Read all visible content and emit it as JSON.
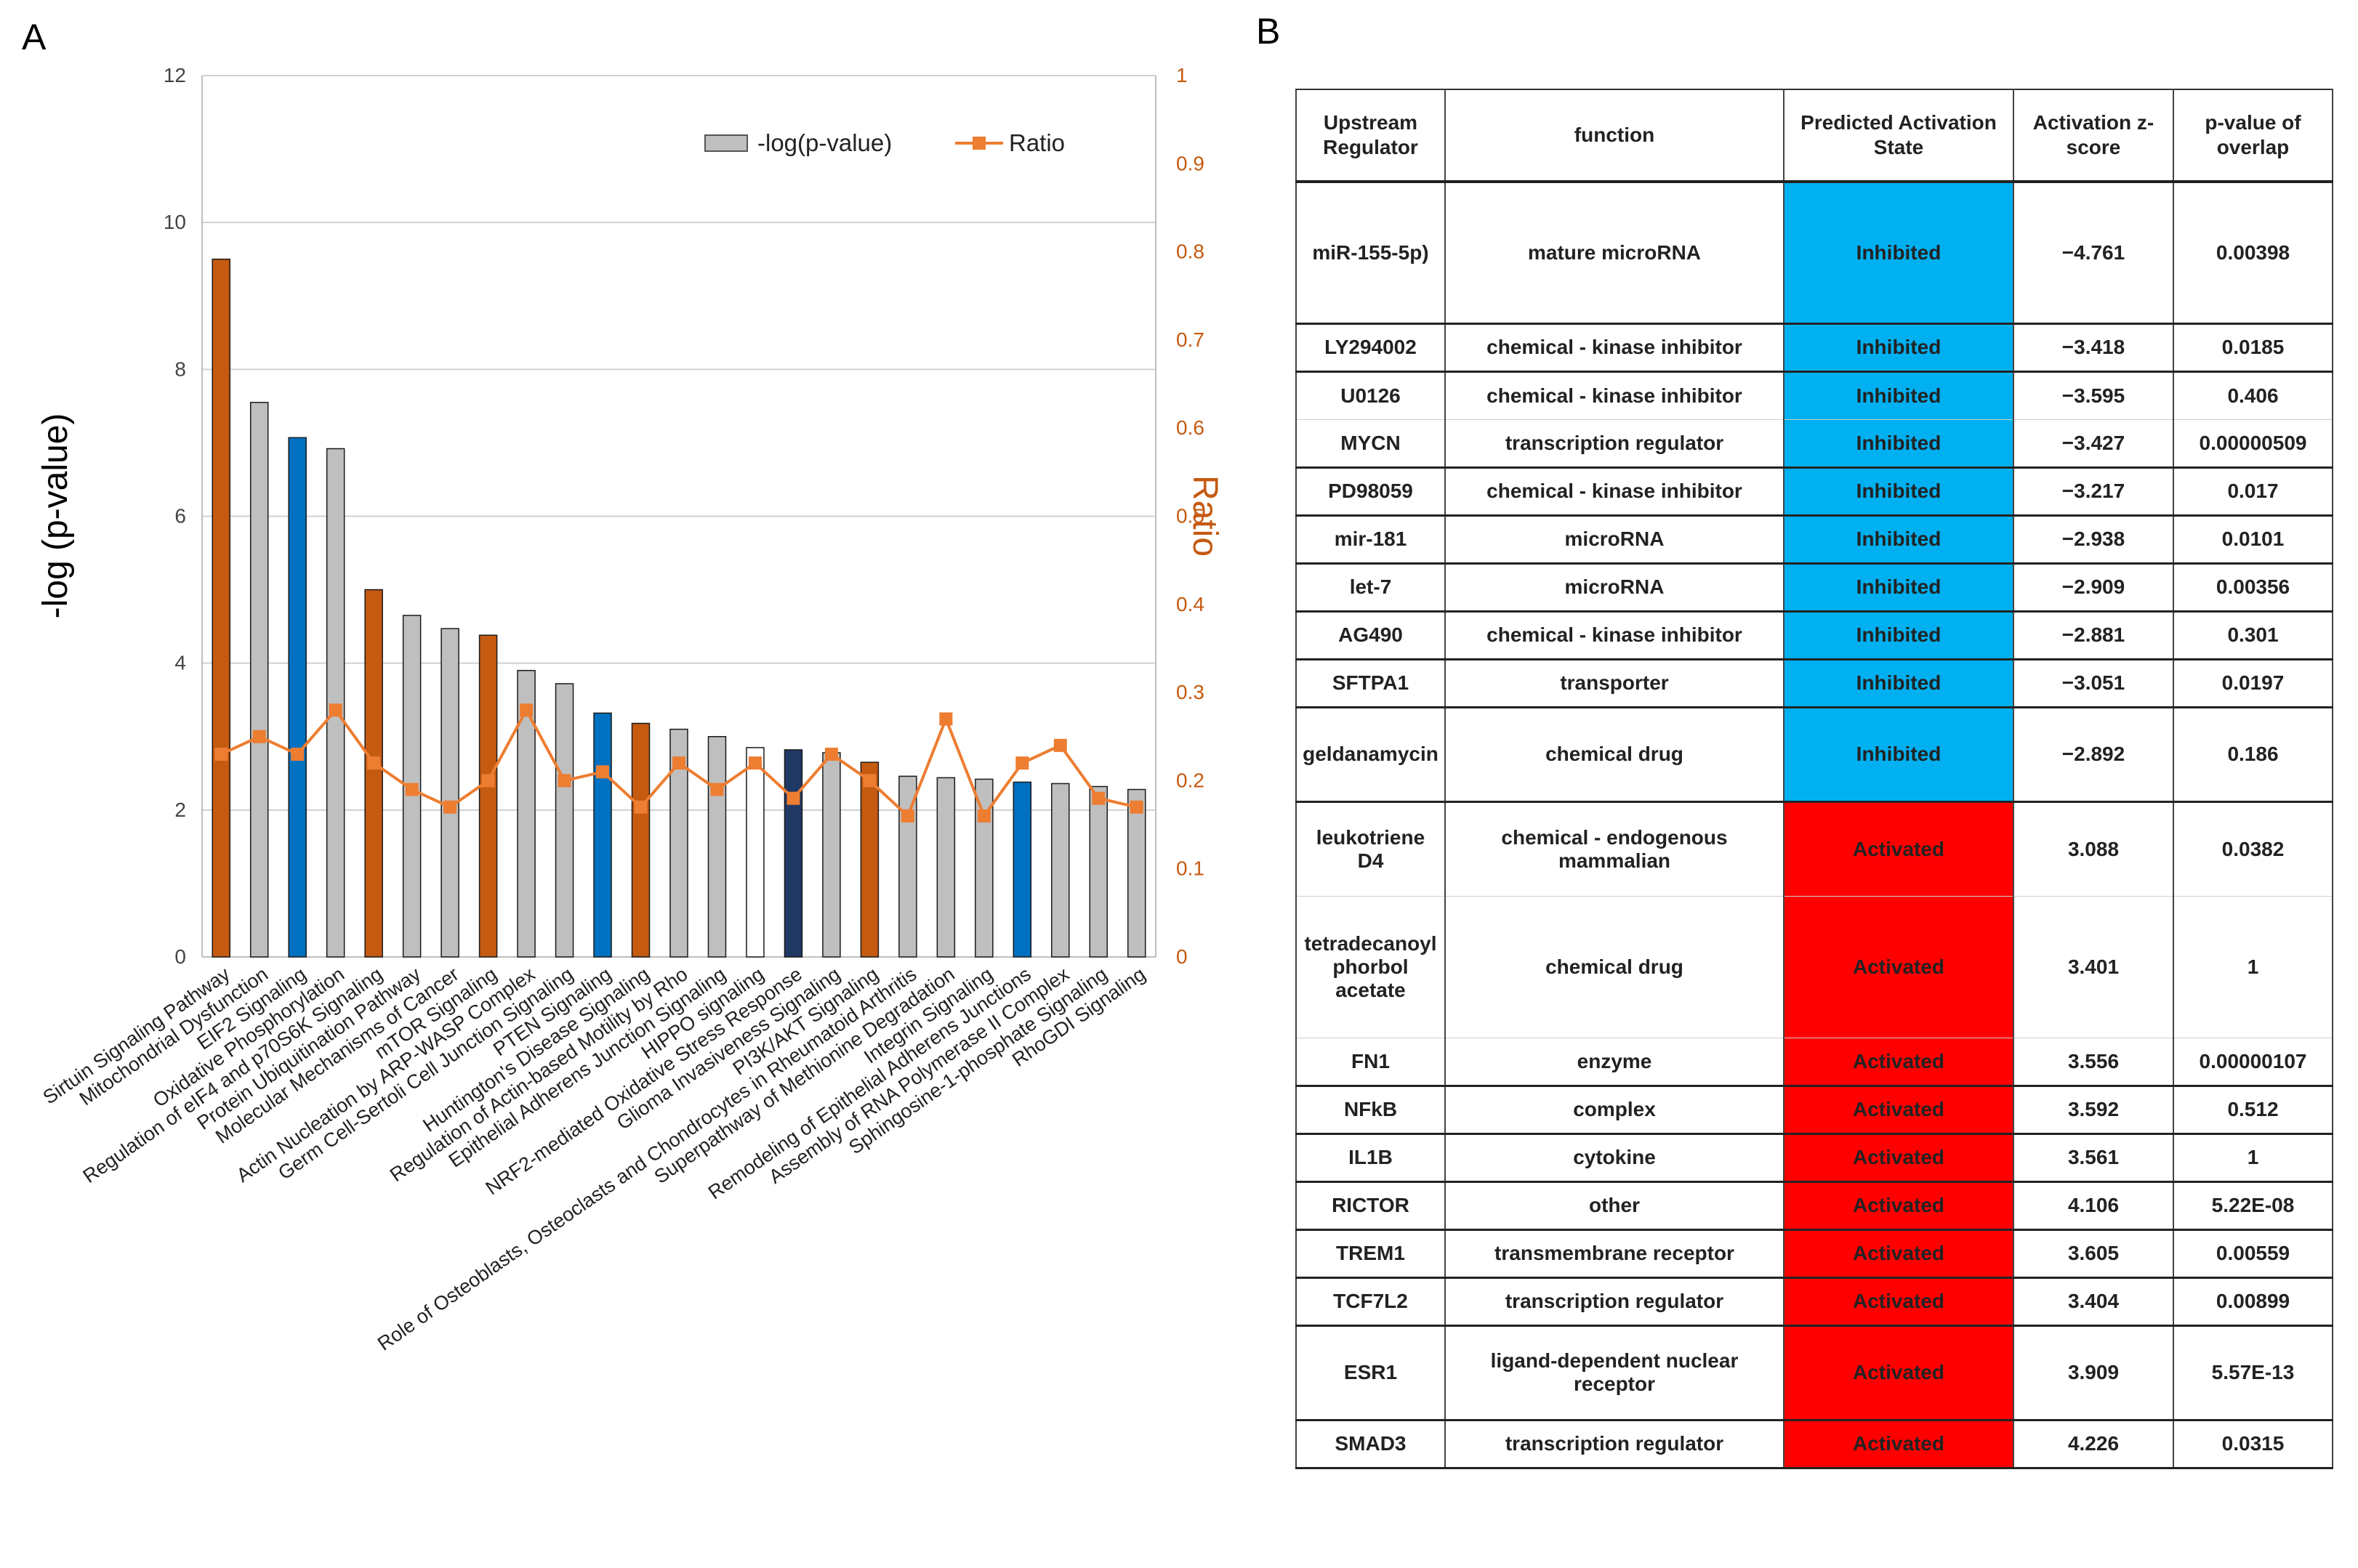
{
  "panels": {
    "a": "A",
    "b": "B"
  },
  "colors": {
    "orange": "#c55a11",
    "gray": "#bfbfbf",
    "blue": "#0070c0",
    "navy": "#203864",
    "white": "#ffffff",
    "ratio_line": "#ed7d31",
    "inhibited": "#00b0f0",
    "activated": "#ff0000"
  },
  "chart_data": {
    "type": "bar+line",
    "ylabel": "-log (p-value)",
    "y2label": "Ratio",
    "ylim": [
      0,
      12
    ],
    "y2lim": [
      0,
      1
    ],
    "yticks": [
      "0",
      "2",
      "4",
      "6",
      "8",
      "10",
      "12"
    ],
    "y2ticks": [
      "0",
      "0.1",
      "0.2",
      "0.3",
      "0.4",
      "0.5",
      "0.6",
      "0.7",
      "0.8",
      "0.9",
      "1"
    ],
    "legend": {
      "position": "top-right",
      "bar_label": "-log(p-value)",
      "line_label": "Ratio"
    },
    "categories": [
      "Sirtuin Signaling Pathway",
      "Mitochondrial Dysfunction",
      "EIF2 Signaling",
      "Oxidative Phosphorylation",
      "Regulation of eIF4 and p70S6K Signaling",
      "Protein Ubiquitination Pathway",
      "Molecular Mechanisms of Cancer",
      "mTOR Signaling",
      "Actin Nucleation by ARP-WASP Complex",
      "Germ Cell-Sertoli Cell Junction Signaling",
      "PTEN Signaling",
      "Huntington's Disease Signaling",
      "Regulation of Actin-based Motility by Rho",
      "Epithelial Adherens Junction Signaling",
      "HIPPO signaling",
      "NRF2-mediated Oxidative Stress Response",
      "Glioma Invasiveness Signaling",
      "PI3K/AKT Signaling",
      "Role of Osteoblasts, Osteoclasts and Chondrocytes in Rheumatoid Arthritis",
      "Superpathway of Methionine Degradation",
      "Integrin Signaling",
      "Remodeling of Epithelial Adherens Junctions",
      "Assembly of RNA Polymerase II Complex",
      "Sphingosine-1-phosphate Signaling",
      "RhoGDI Signaling"
    ],
    "series": [
      {
        "name": "-log(p-value)",
        "type": "bar",
        "values": [
          9.5,
          7.55,
          7.07,
          6.92,
          5.0,
          4.65,
          4.47,
          4.38,
          3.9,
          3.72,
          3.32,
          3.18,
          3.1,
          3.0,
          2.85,
          2.82,
          2.78,
          2.65,
          2.46,
          2.44,
          2.42,
          2.38,
          2.36,
          2.32,
          2.28
        ],
        "color_keys": [
          "orange",
          "gray",
          "blue",
          "gray",
          "orange",
          "gray",
          "gray",
          "orange",
          "gray",
          "gray",
          "blue",
          "orange",
          "gray",
          "gray",
          "white",
          "navy",
          "gray",
          "orange",
          "gray",
          "gray",
          "gray",
          "blue",
          "gray",
          "gray",
          "gray"
        ]
      },
      {
        "name": "Ratio",
        "type": "line",
        "values": [
          0.23,
          0.25,
          0.23,
          0.28,
          0.22,
          0.19,
          0.17,
          0.2,
          0.28,
          0.2,
          0.21,
          0.17,
          0.22,
          0.19,
          0.22,
          0.18,
          0.23,
          0.2,
          0.16,
          0.27,
          0.16,
          0.22,
          0.24,
          0.18,
          0.17
        ]
      }
    ]
  },
  "table": {
    "headers": [
      "Upstream Regulator",
      "function",
      "Predicted Activation State",
      "Activation z-score",
      "p-value of overlap"
    ],
    "rows": [
      {
        "regulator": "miR-155-5p)",
        "function": "mature microRNA",
        "state": "Inhibited",
        "zscore": "−4.761",
        "pvalue": "0.00398",
        "h": 195,
        "group_end": true
      },
      {
        "regulator": "LY294002",
        "function": "chemical - kinase inhibitor",
        "state": "Inhibited",
        "zscore": "−3.418",
        "pvalue": "0.0185",
        "h": 66,
        "group_end": true
      },
      {
        "regulator": "U0126",
        "function": "chemical - kinase inhibitor",
        "state": "Inhibited",
        "zscore": "−3.595",
        "pvalue": "0.406",
        "h": 66,
        "group_end": false
      },
      {
        "regulator": "MYCN",
        "function": "transcription regulator",
        "state": "Inhibited",
        "zscore": "−3.427",
        "pvalue": "0.00000509",
        "h": 66,
        "group_end": true
      },
      {
        "regulator": "PD98059",
        "function": "chemical - kinase inhibitor",
        "state": "Inhibited",
        "zscore": "−3.217",
        "pvalue": "0.017",
        "h": 66,
        "group_end": true
      },
      {
        "regulator": "mir-181",
        "function": "microRNA",
        "state": "Inhibited",
        "zscore": "−2.938",
        "pvalue": "0.0101",
        "h": 66,
        "group_end": true
      },
      {
        "regulator": "let-7",
        "function": "microRNA",
        "state": "Inhibited",
        "zscore": "−2.909",
        "pvalue": "0.00356",
        "h": 66,
        "group_end": true
      },
      {
        "regulator": "AG490",
        "function": "chemical - kinase inhibitor",
        "state": "Inhibited",
        "zscore": "−2.881",
        "pvalue": "0.301",
        "h": 66,
        "group_end": true
      },
      {
        "regulator": "SFTPA1",
        "function": "transporter",
        "state": "Inhibited",
        "zscore": "−3.051",
        "pvalue": "0.0197",
        "h": 66,
        "group_end": true
      },
      {
        "regulator": "geldanamycin",
        "function": "chemical drug",
        "state": "Inhibited",
        "zscore": "−2.892",
        "pvalue": "0.186",
        "h": 130,
        "group_end": true
      },
      {
        "regulator": "leukotriene D4",
        "function": "chemical - endogenous mammalian",
        "state": "Activated",
        "zscore": "3.088",
        "pvalue": "0.0382",
        "h": 130,
        "group_end": false
      },
      {
        "regulator": "tetradecanoyl phorbol acetate",
        "function": "chemical drug",
        "state": "Activated",
        "zscore": "3.401",
        "pvalue": "1",
        "h": 195,
        "group_end": false
      },
      {
        "regulator": "FN1",
        "function": "enzyme",
        "state": "Activated",
        "zscore": "3.556",
        "pvalue": "0.00000107",
        "h": 66,
        "group_end": true
      },
      {
        "regulator": "NFkB",
        "function": "complex",
        "state": "Activated",
        "zscore": "3.592",
        "pvalue": "0.512",
        "h": 66,
        "group_end": true
      },
      {
        "regulator": "IL1B",
        "function": "cytokine",
        "state": "Activated",
        "zscore": "3.561",
        "pvalue": "1",
        "h": 66,
        "group_end": true
      },
      {
        "regulator": "RICTOR",
        "function": "other",
        "state": "Activated",
        "zscore": "4.106",
        "pvalue": "5.22E-08",
        "h": 66,
        "group_end": true
      },
      {
        "regulator": "TREM1",
        "function": "transmembrane receptor",
        "state": "Activated",
        "zscore": "3.605",
        "pvalue": "0.00559",
        "h": 66,
        "group_end": true
      },
      {
        "regulator": "TCF7L2",
        "function": "transcription regulator",
        "state": "Activated",
        "zscore": "3.404",
        "pvalue": "0.00899",
        "h": 66,
        "group_end": true
      },
      {
        "regulator": "ESR1",
        "function": "ligand-dependent nuclear receptor",
        "state": "Activated",
        "zscore": "3.909",
        "pvalue": "5.57E-13",
        "h": 130,
        "group_end": true
      },
      {
        "regulator": "SMAD3",
        "function": "transcription regulator",
        "state": "Activated",
        "zscore": "4.226",
        "pvalue": "0.0315",
        "h": 66,
        "group_end": true
      }
    ]
  }
}
